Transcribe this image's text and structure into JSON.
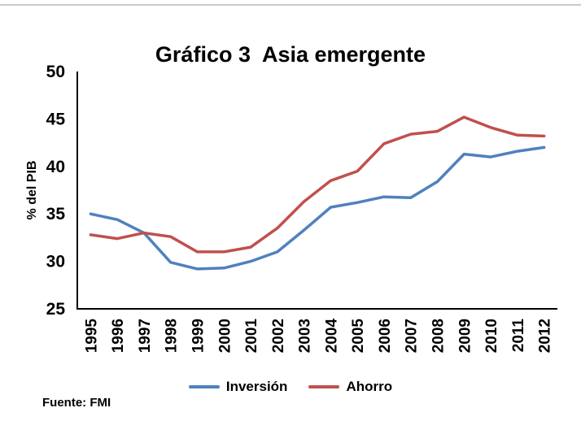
{
  "slide": {
    "title": "Gráfico 3  Asia emergente",
    "source": "Fuente: FMI"
  },
  "chart_data": {
    "type": "line",
    "title": "Gráfico 3  Asia emergente",
    "xlabel": "",
    "ylabel": "% del PIB",
    "ylim": [
      25,
      50
    ],
    "ytick_step": 5,
    "grid": false,
    "legend_position": "bottom",
    "categories": [
      "1995",
      "1996",
      "1997",
      "1998",
      "1999",
      "2000",
      "2001",
      "2002",
      "2003",
      "2004",
      "2005",
      "2006",
      "2007",
      "2008",
      "2009",
      "2010",
      "2011",
      "2012"
    ],
    "series": [
      {
        "name": "Inversión",
        "color": "#4f81bd",
        "values": [
          35.0,
          34.4,
          33.0,
          29.9,
          29.2,
          29.3,
          30.0,
          31.0,
          33.3,
          35.7,
          36.2,
          36.8,
          36.7,
          38.4,
          41.3,
          41.0,
          41.6,
          42.0
        ]
      },
      {
        "name": "Ahorro",
        "color": "#c0504d",
        "values": [
          32.8,
          32.4,
          33.0,
          32.6,
          31.0,
          31.0,
          31.5,
          33.5,
          36.3,
          38.5,
          39.5,
          42.4,
          43.4,
          43.7,
          45.2,
          44.1,
          43.3,
          43.2
        ]
      }
    ]
  }
}
